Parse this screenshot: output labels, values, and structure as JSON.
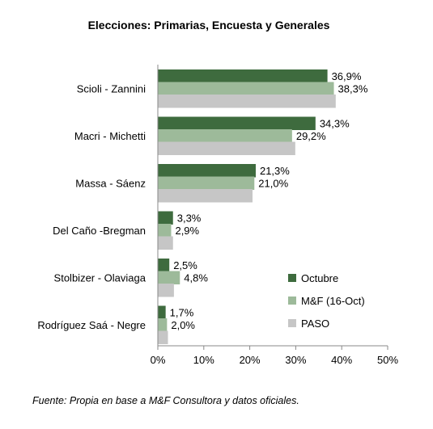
{
  "chart_data": {
    "type": "bar",
    "orientation": "horizontal",
    "title": "Elecciones: Primarias, Encuesta y Generales",
    "categories": [
      "Scioli - Zannini",
      "Macri - Michetti",
      "Massa - Sáenz",
      "Del Caño -Bregman",
      "Stolbizer - Olaviaga",
      "Rodríguez Saá - Negre"
    ],
    "series": [
      {
        "name": "Octubre",
        "color": "#3e6b3e",
        "values": [
          36.9,
          34.3,
          21.3,
          3.3,
          2.5,
          1.7
        ],
        "labels": [
          "36,9%",
          "34,3%",
          "21,3%",
          "3,3%",
          "2,5%",
          "1,7%"
        ]
      },
      {
        "name": "M&F (16-Oct)",
        "color": "#9dba9a",
        "values": [
          38.3,
          29.2,
          21.0,
          2.9,
          4.8,
          2.0
        ],
        "labels": [
          "38,3%",
          "29,2%",
          "21,0%",
          "2,9%",
          "4,8%",
          "2,0%"
        ]
      },
      {
        "name": "PASO",
        "color": "#c6c6c6",
        "values": [
          38.7,
          29.9,
          20.6,
          3.3,
          3.5,
          2.2
        ],
        "labels": []
      }
    ],
    "xlim": [
      0,
      50
    ],
    "x_ticks": [
      "0%",
      "10%",
      "20%",
      "30%",
      "40%",
      "50%"
    ],
    "grid": false,
    "legend_position": "bottom-right"
  },
  "source_note": "Fuente: Propia en base a M&F Consultora y datos oficiales."
}
